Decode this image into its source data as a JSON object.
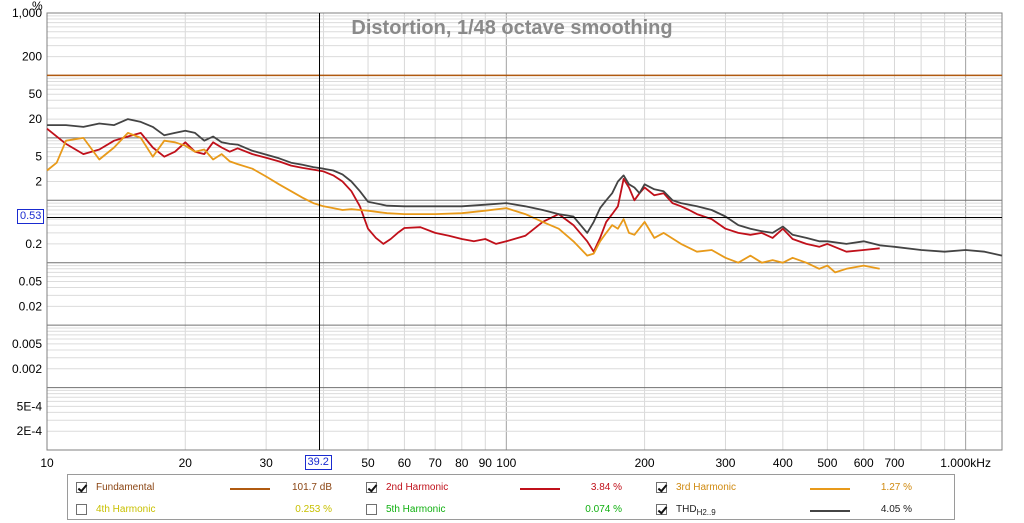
{
  "y_unit": "%",
  "chart_data": {
    "type": "line",
    "title": "Distortion, 1/48 octave smoothing",
    "xscale": "log",
    "yscale": "log",
    "xlim": [
      10,
      1200
    ],
    "ylim": [
      0.0001,
      1000
    ],
    "x_ticks": [
      {
        "v": 10,
        "label": "10"
      },
      {
        "v": 20,
        "label": "20"
      },
      {
        "v": 30,
        "label": "30"
      },
      {
        "v": 50,
        "label": "50"
      },
      {
        "v": 60,
        "label": "60"
      },
      {
        "v": 70,
        "label": "70"
      },
      {
        "v": 80,
        "label": "80"
      },
      {
        "v": 90,
        "label": "90"
      },
      {
        "v": 100,
        "label": "100"
      },
      {
        "v": 200,
        "label": "200"
      },
      {
        "v": 300,
        "label": "300"
      },
      {
        "v": 400,
        "label": "400"
      },
      {
        "v": 500,
        "label": "500"
      },
      {
        "v": 600,
        "label": "600"
      },
      {
        "v": 700,
        "label": "700"
      },
      {
        "v": 1000,
        "label": "1.000kHz"
      }
    ],
    "y_ticks": [
      {
        "v": 1000,
        "label": "1,000"
      },
      {
        "v": 200,
        "label": "200"
      },
      {
        "v": 50,
        "label": "50"
      },
      {
        "v": 20,
        "label": "20"
      },
      {
        "v": 5,
        "label": "5"
      },
      {
        "v": 2,
        "label": "2"
      },
      {
        "v": 0.2,
        "label": "0.2"
      },
      {
        "v": 0.05,
        "label": "0.05"
      },
      {
        "v": 0.02,
        "label": "0.02"
      },
      {
        "v": 0.005,
        "label": "0.005"
      },
      {
        "v": 0.002,
        "label": "0.002"
      },
      {
        "v": 0.0005,
        "label": "5E-4"
      },
      {
        "v": 0.0002,
        "label": "2E-4"
      }
    ],
    "grid": true,
    "cursor": {
      "x": 39.2,
      "x_label": "39.2",
      "y": 0.53,
      "y_label": "0.53"
    },
    "series": [
      {
        "key": "fundamental",
        "name": "Fundamental",
        "color": "#b05a10",
        "visible": true,
        "x": [
          10,
          1200
        ],
        "y": [
          100,
          100
        ]
      },
      {
        "key": "h2",
        "name": "2nd Harmonic",
        "color": "#c0101a",
        "visible": true,
        "x": [
          10,
          11,
          12,
          13,
          14,
          15,
          16,
          17,
          18,
          19,
          20,
          21,
          22,
          23,
          24,
          25,
          26,
          28,
          30,
          32,
          34,
          36,
          38,
          40,
          42,
          44,
          46,
          48,
          50,
          52,
          54,
          56,
          58,
          60,
          65,
          70,
          75,
          80,
          85,
          90,
          95,
          100,
          110,
          120,
          130,
          140,
          150,
          155,
          160,
          165,
          170,
          175,
          180,
          185,
          190,
          195,
          200,
          210,
          220,
          230,
          240,
          250,
          260,
          280,
          300,
          320,
          340,
          360,
          380,
          400,
          420,
          450,
          480,
          500,
          550,
          600,
          650
        ],
        "y": [
          14,
          8,
          5.5,
          6.5,
          9,
          10.5,
          12,
          7,
          5,
          6,
          8.5,
          6,
          5.5,
          8.5,
          7,
          6,
          6.8,
          5.5,
          4.8,
          4.2,
          3.6,
          3.3,
          3.1,
          2.9,
          2.5,
          2.0,
          1.4,
          0.8,
          0.35,
          0.25,
          0.2,
          0.24,
          0.3,
          0.36,
          0.37,
          0.3,
          0.27,
          0.24,
          0.22,
          0.24,
          0.2,
          0.22,
          0.27,
          0.45,
          0.6,
          0.4,
          0.22,
          0.15,
          0.25,
          0.45,
          0.6,
          0.8,
          2.2,
          1.6,
          1.0,
          1.3,
          1.6,
          1.2,
          1.3,
          0.9,
          0.8,
          0.7,
          0.6,
          0.5,
          0.35,
          0.3,
          0.28,
          0.3,
          0.25,
          0.35,
          0.24,
          0.2,
          0.18,
          0.2,
          0.15,
          0.16,
          0.17
        ]
      },
      {
        "key": "h3",
        "name": "3rd Harmonic",
        "color": "#e89a1a",
        "visible": true,
        "x": [
          10,
          10.5,
          11,
          12,
          13,
          14,
          15,
          16,
          17,
          18,
          19,
          20,
          21,
          22,
          23,
          24,
          25,
          26,
          28,
          30,
          32,
          34,
          36,
          38,
          40,
          42,
          44,
          46,
          48,
          50,
          55,
          60,
          65,
          70,
          80,
          90,
          100,
          110,
          120,
          130,
          140,
          150,
          155,
          160,
          165,
          170,
          175,
          180,
          185,
          190,
          200,
          210,
          220,
          240,
          260,
          280,
          300,
          320,
          340,
          360,
          380,
          400,
          420,
          450,
          480,
          500,
          520,
          550,
          600,
          650
        ],
        "y": [
          3,
          4,
          9,
          10,
          4.5,
          7,
          12,
          10,
          5,
          9,
          8.5,
          7.5,
          6,
          6.5,
          4.5,
          5.5,
          4.2,
          3.8,
          3.2,
          2.4,
          1.8,
          1.4,
          1.1,
          0.9,
          0.8,
          0.75,
          0.7,
          0.72,
          0.7,
          0.68,
          0.62,
          0.6,
          0.6,
          0.6,
          0.62,
          0.68,
          0.75,
          0.6,
          0.45,
          0.35,
          0.22,
          0.13,
          0.14,
          0.22,
          0.3,
          0.4,
          0.35,
          0.5,
          0.3,
          0.28,
          0.45,
          0.25,
          0.3,
          0.2,
          0.15,
          0.16,
          0.12,
          0.1,
          0.13,
          0.1,
          0.11,
          0.1,
          0.12,
          0.1,
          0.08,
          0.09,
          0.07,
          0.08,
          0.09,
          0.08
        ]
      },
      {
        "key": "h4",
        "name": "4th Harmonic",
        "color": "#c8c81a",
        "visible": false,
        "x": [],
        "y": []
      },
      {
        "key": "h5",
        "name": "5th Harmonic",
        "color": "#10c010",
        "visible": false,
        "x": [],
        "y": []
      },
      {
        "key": "thd",
        "name": "THD",
        "name_sub": "H2..9",
        "color": "#444444",
        "visible": true,
        "x": [
          10,
          11,
          12,
          13,
          14,
          15,
          16,
          17,
          18,
          19,
          20,
          21,
          22,
          23,
          24,
          25,
          26,
          28,
          30,
          32,
          34,
          36,
          38,
          40,
          42,
          44,
          46,
          48,
          50,
          55,
          60,
          70,
          80,
          90,
          100,
          110,
          120,
          130,
          140,
          150,
          155,
          160,
          165,
          170,
          175,
          180,
          185,
          190,
          195,
          200,
          210,
          220,
          230,
          240,
          260,
          280,
          300,
          320,
          340,
          360,
          380,
          400,
          420,
          450,
          480,
          500,
          550,
          600,
          650,
          700,
          800,
          900,
          1000,
          1100,
          1200
        ],
        "y": [
          16,
          16,
          15,
          17,
          16,
          20,
          18,
          15,
          11,
          12,
          13,
          12,
          9,
          10.5,
          8.5,
          8,
          7.8,
          6.2,
          5.4,
          4.7,
          4.0,
          3.7,
          3.4,
          3.2,
          3.0,
          2.6,
          2.0,
          1.4,
          0.95,
          0.82,
          0.8,
          0.8,
          0.8,
          0.85,
          0.9,
          0.8,
          0.7,
          0.6,
          0.55,
          0.3,
          0.45,
          0.75,
          1.0,
          1.3,
          2.0,
          2.5,
          1.8,
          1.6,
          1.3,
          1.8,
          1.5,
          1.4,
          1.0,
          0.9,
          0.8,
          0.7,
          0.55,
          0.4,
          0.35,
          0.32,
          0.3,
          0.38,
          0.28,
          0.25,
          0.22,
          0.22,
          0.2,
          0.22,
          0.19,
          0.18,
          0.16,
          0.15,
          0.16,
          0.15,
          0.13
        ]
      }
    ]
  },
  "legend": [
    {
      "key": "fundamental",
      "checked": true,
      "label": "Fundamental",
      "value": "101.7 dB",
      "color": "#b05a10",
      "text_color": "#8b4513"
    },
    {
      "key": "h2",
      "checked": true,
      "label": "2nd Harmonic",
      "value": "3.84 %",
      "color": "#c0101a",
      "text_color": "#c0101a"
    },
    {
      "key": "h3",
      "checked": true,
      "label": "3rd Harmonic",
      "value": "1.27 %",
      "color": "#e89a1a",
      "text_color": "#d08a10"
    },
    {
      "key": "h4",
      "checked": false,
      "label": "4th Harmonic",
      "value": "0.253 %",
      "color": "#c8c81a",
      "text_color": "#c8c000"
    },
    {
      "key": "h5",
      "checked": false,
      "label": "5th Harmonic",
      "value": "0.074 %",
      "color": "#10c010",
      "text_color": "#10b010"
    },
    {
      "key": "thd",
      "checked": true,
      "label": "THD",
      "label_sub": "H2..9",
      "value": "4.05 %",
      "color": "#444444",
      "text_color": "#222222"
    }
  ]
}
